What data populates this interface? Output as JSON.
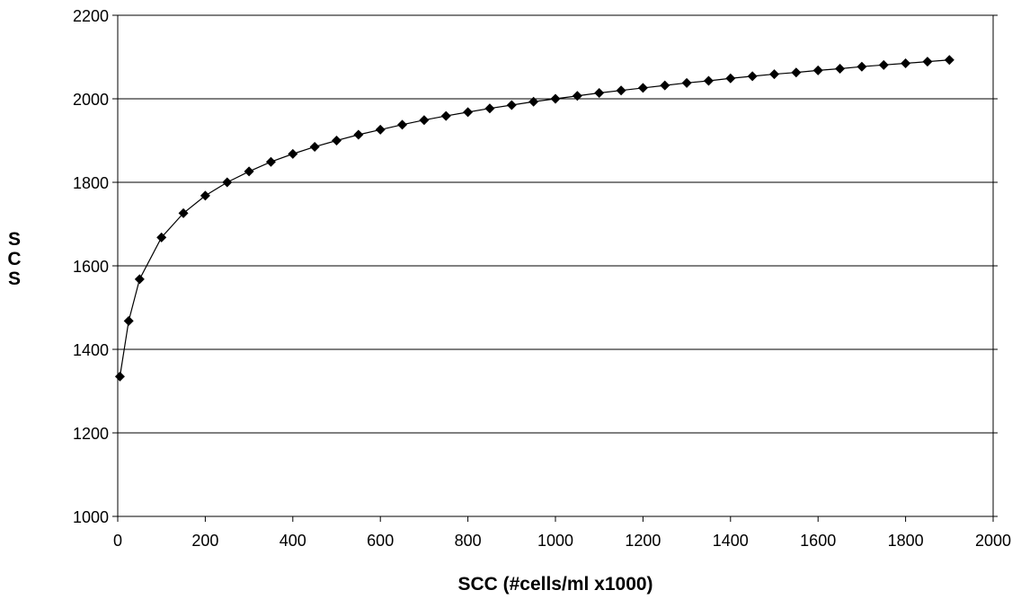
{
  "chart_data": {
    "type": "line",
    "title": "",
    "xlabel": "SCC (#cells/ml x1000)",
    "ylabel": "SCS",
    "xlim": [
      0,
      2000
    ],
    "ylim": [
      1000,
      2200
    ],
    "xticks": [
      0,
      200,
      400,
      600,
      800,
      1000,
      1200,
      1400,
      1600,
      1800,
      2000
    ],
    "yticks": [
      1000,
      1200,
      1400,
      1600,
      1800,
      2000,
      2200
    ],
    "grid": "horizontal",
    "legend": "none",
    "markers": "diamond",
    "colors": {
      "series": "#000000",
      "grid": "#000000",
      "background": "#ffffff"
    },
    "series": [
      {
        "x": [
          5,
          25,
          50,
          100,
          150,
          200,
          250,
          300,
          350,
          400,
          450,
          500,
          550,
          600,
          650,
          700,
          750,
          800,
          850,
          900,
          950,
          1000,
          1050,
          1100,
          1150,
          1200,
          1250,
          1300,
          1350,
          1400,
          1450,
          1500,
          1550,
          1600,
          1650,
          1700,
          1750,
          1800,
          1850,
          1900
        ],
        "y": [
          1335,
          1468,
          1568,
          1668,
          1726,
          1768,
          1800,
          1826,
          1849,
          1868,
          1885,
          1900,
          1914,
          1926,
          1938,
          1949,
          1959,
          1968,
          1977,
          1985,
          1993,
          2000,
          2007,
          2014,
          2020,
          2026,
          2032,
          2038,
          2043,
          2049,
          2054,
          2059,
          2063,
          2068,
          2072,
          2077,
          2081,
          2085,
          2089,
          2093
        ]
      }
    ]
  }
}
